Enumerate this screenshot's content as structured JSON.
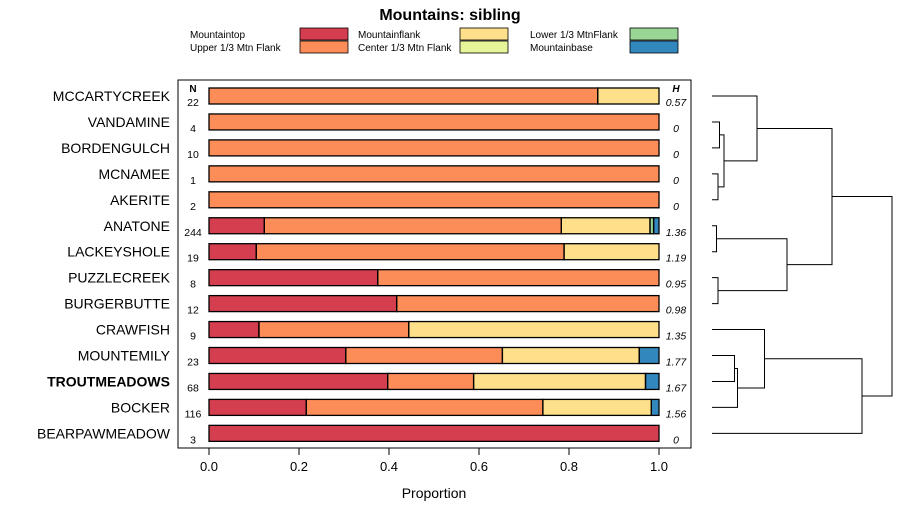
{
  "chart_data": {
    "type": "bar",
    "orientation": "horizontal",
    "stacked": true,
    "title": "Mountains: sibling",
    "xlabel": "Proportion",
    "xlim": [
      0,
      1
    ],
    "xticks": [
      "0.0",
      "0.2",
      "0.4",
      "0.6",
      "0.8",
      "1.0"
    ],
    "n_header": "N",
    "h_header": "H",
    "highlight": "TROUTMEADOWS",
    "legend_position": "top",
    "categories_legend": [
      {
        "name": "Mountaintop",
        "color": "#d53e4f"
      },
      {
        "name": "Upper 1/3 Mtn Flank",
        "color": "#fc8d59"
      },
      {
        "name": "Mountainflank",
        "color": "#fee08b"
      },
      {
        "name": "Center 1/3 Mtn Flank",
        "color": "#e6f598"
      },
      {
        "name": "Lower 1/3 MtnFlank",
        "color": "#99d594"
      },
      {
        "name": "Mountainbase",
        "color": "#3288bd"
      }
    ],
    "rows": [
      {
        "site": "MCCARTYCREEK",
        "n": "22",
        "h": "0.57",
        "values": [
          0,
          0.864,
          0.136,
          0,
          0,
          0
        ]
      },
      {
        "site": "VANDAMINE",
        "n": "4",
        "h": "0",
        "values": [
          0,
          1,
          0,
          0,
          0,
          0
        ]
      },
      {
        "site": "BORDENGULCH",
        "n": "10",
        "h": "0",
        "values": [
          0,
          1,
          0,
          0,
          0,
          0
        ]
      },
      {
        "site": "MCNAMEE",
        "n": "1",
        "h": "0",
        "values": [
          0,
          1,
          0,
          0,
          0,
          0
        ]
      },
      {
        "site": "AKERITE",
        "n": "2",
        "h": "0",
        "values": [
          0,
          1,
          0,
          0,
          0,
          0
        ]
      },
      {
        "site": "ANATONE",
        "n": "244",
        "h": "1.36",
        "values": [
          0.123,
          0.66,
          0.197,
          0,
          0.008,
          0.012
        ]
      },
      {
        "site": "LACKEYSHOLE",
        "n": "19",
        "h": "1.19",
        "values": [
          0.105,
          0.684,
          0.211,
          0,
          0,
          0
        ]
      },
      {
        "site": "PUZZLECREEK",
        "n": "8",
        "h": "0.95",
        "values": [
          0.375,
          0.625,
          0,
          0,
          0,
          0
        ]
      },
      {
        "site": "BURGERBUTTE",
        "n": "12",
        "h": "0.98",
        "values": [
          0.417,
          0.583,
          0,
          0,
          0,
          0
        ]
      },
      {
        "site": "CRAWFISH",
        "n": "9",
        "h": "1.35",
        "values": [
          0.111,
          0.333,
          0.556,
          0,
          0,
          0
        ]
      },
      {
        "site": "MOUNTEMILY",
        "n": "23",
        "h": "1.77",
        "values": [
          0.304,
          0.348,
          0.304,
          0,
          0,
          0.044
        ]
      },
      {
        "site": "TROUTMEADOWS",
        "n": "68",
        "h": "1.67",
        "values": [
          0.397,
          0.191,
          0.382,
          0,
          0,
          0.03
        ]
      },
      {
        "site": "BOCKER",
        "n": "116",
        "h": "1.56",
        "values": [
          0.216,
          0.526,
          0.241,
          0,
          0,
          0.017
        ]
      },
      {
        "site": "BEARPAWMEADOW",
        "n": "3",
        "h": "0",
        "values": [
          1,
          0,
          0,
          0,
          0,
          0
        ]
      }
    ],
    "dendrogram": {
      "note": "clustering tree of sites, merge order",
      "merges": [
        [
          1,
          2,
          0.05
        ],
        [
          3,
          4,
          0.04
        ],
        [
          "a",
          "b",
          0.08
        ],
        [
          0,
          "c",
          0.3
        ],
        [
          5,
          6,
          0.03
        ],
        [
          7,
          8,
          0.04
        ],
        [
          "e",
          "f",
          0.5
        ],
        [
          10,
          11,
          0.15
        ],
        [
          "h",
          12,
          0.17
        ],
        [
          9,
          "i",
          0.35
        ],
        [
          "d",
          "g",
          0.8
        ],
        [
          "j",
          13,
          1.0
        ],
        [
          "k",
          "l",
          1.2
        ]
      ]
    }
  }
}
